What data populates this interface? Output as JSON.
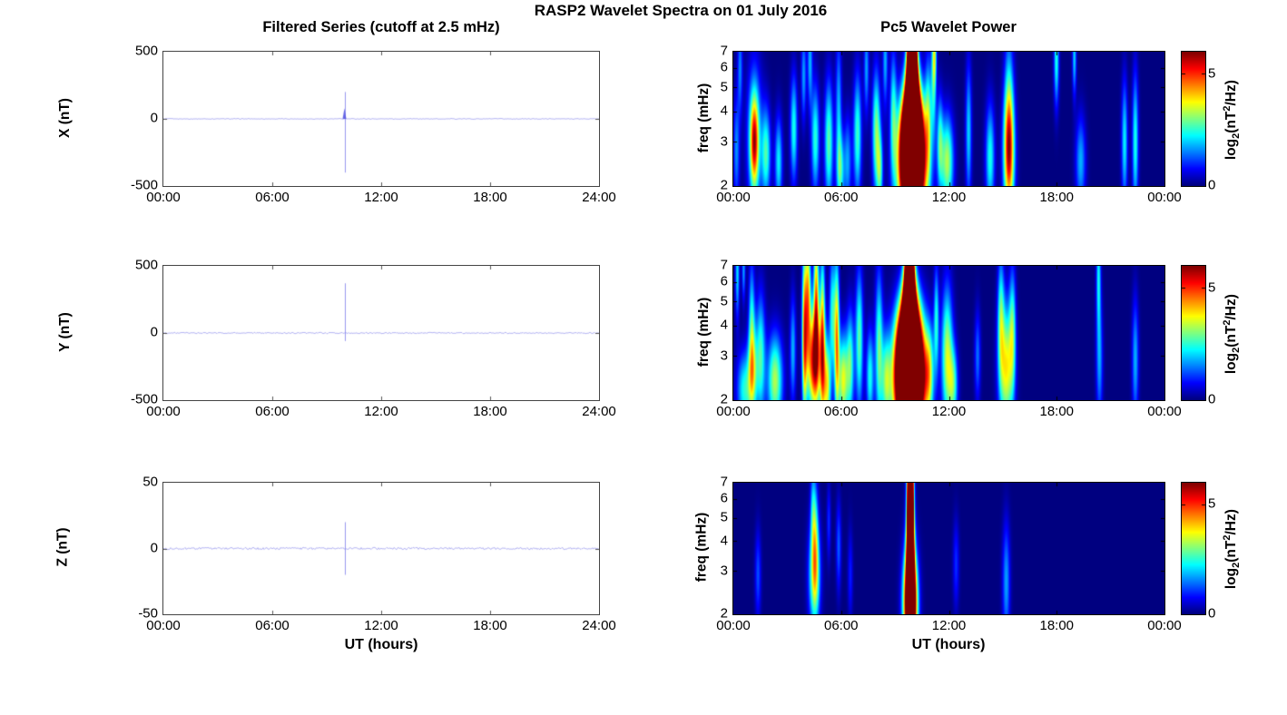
{
  "figure": {
    "title": "RASP2 Wavelet Spectra on 01 July 2016"
  },
  "left_column": {
    "title": "Filtered Series (cutoff at 2.5 mHz)",
    "xlabel": "UT (hours)"
  },
  "right_column": {
    "title": "Pc5 Wavelet Power",
    "xlabel": "UT (hours)"
  },
  "colorbar": {
    "label_prefix": "log",
    "label_sub": "2",
    "label_mid": "(nT",
    "label_sup": "2",
    "label_suffix": "/Hz)",
    "max": 6,
    "ticks": [
      {
        "label": "0",
        "value": 0
      },
      {
        "label": "5",
        "value": 5
      }
    ]
  },
  "chart_data": [
    {
      "type": "line",
      "series": "X",
      "ylabel": "X (nT)",
      "ylim": [
        -500,
        500
      ],
      "yticks": [
        "500",
        "0",
        "-500"
      ],
      "xlim_hours": [
        0,
        24
      ],
      "xticks": [
        "00:00",
        "06:00",
        "12:00",
        "18:00",
        "24:00"
      ],
      "baseline": 0,
      "noise_amp": 3,
      "spike": {
        "t": 10.0,
        "peak": 200,
        "trough": -400,
        "minor_peak": 80
      },
      "line_color": "#b0b0f2",
      "spike_color": "#8d8dee",
      "accent_color": "#4d4de0"
    },
    {
      "type": "heatmap",
      "series": "X",
      "ylabel": "freq (mHz)",
      "freq_range_mhz": [
        2,
        7
      ],
      "freq_ticks": [
        7,
        6,
        5,
        4,
        3,
        2
      ],
      "xlim_hours": [
        0,
        24
      ],
      "xticks": [
        "00:00",
        "06:00",
        "12:00",
        "18:00",
        "00:00"
      ],
      "power_units": "log2(nT^2/Hz)",
      "power_scale_max": 6,
      "blobs": [
        [
          9.95,
          2.4,
          0.5,
          0.4,
          12
        ],
        [
          9.95,
          3.2,
          0.33,
          0.3,
          12
        ],
        [
          9.95,
          4.5,
          0.2,
          0.3,
          12
        ],
        [
          9.95,
          6.0,
          0.15,
          0.35,
          12
        ],
        [
          9.95,
          7.0,
          0.13,
          0.3,
          12
        ],
        [
          0.15,
          2.8,
          0.12,
          0.35,
          1.6
        ],
        [
          0.35,
          6.0,
          0.1,
          0.3,
          1.5
        ],
        [
          1.15,
          3.0,
          0.17,
          0.3,
          4.2
        ],
        [
          1.15,
          3.2,
          0.3,
          0.5,
          1.8
        ],
        [
          1.8,
          2.7,
          0.18,
          0.3,
          2.6
        ],
        [
          2.5,
          2.5,
          0.15,
          0.3,
          2.2
        ],
        [
          3.35,
          3.4,
          0.14,
          0.35,
          2.4
        ],
        [
          3.9,
          5.6,
          0.1,
          0.3,
          1.7
        ],
        [
          4.25,
          6.4,
          0.1,
          0.3,
          1.8
        ],
        [
          4.55,
          3.1,
          0.16,
          0.35,
          2.5
        ],
        [
          5.3,
          3.0,
          0.17,
          0.4,
          2.8
        ],
        [
          5.85,
          4.0,
          0.12,
          0.5,
          1.8
        ],
        [
          5.95,
          2.3,
          0.15,
          0.25,
          2.3
        ],
        [
          6.35,
          2.5,
          0.15,
          0.3,
          1.7
        ],
        [
          6.9,
          3.2,
          0.16,
          0.4,
          2.6
        ],
        [
          7.4,
          6.0,
          0.1,
          0.3,
          1.7
        ],
        [
          7.95,
          3.3,
          0.16,
          0.4,
          3.0
        ],
        [
          8.15,
          2.3,
          0.12,
          0.25,
          2.3
        ],
        [
          8.45,
          6.5,
          0.1,
          0.3,
          1.8
        ],
        [
          8.9,
          4.0,
          0.13,
          0.4,
          2.2
        ],
        [
          10.85,
          3.8,
          0.13,
          0.4,
          2.3
        ],
        [
          11.15,
          5.5,
          0.1,
          0.4,
          2.3
        ],
        [
          11.2,
          6.9,
          0.08,
          0.2,
          2.0
        ],
        [
          11.5,
          3.0,
          0.12,
          0.3,
          2.2
        ],
        [
          11.9,
          2.5,
          0.25,
          0.3,
          3.3
        ],
        [
          13.1,
          3.3,
          0.12,
          0.45,
          2.0
        ],
        [
          14.3,
          2.6,
          0.18,
          0.35,
          2.4
        ],
        [
          15.35,
          2.7,
          0.22,
          0.4,
          4.4
        ],
        [
          15.35,
          3.9,
          0.18,
          0.55,
          2.0
        ],
        [
          18.0,
          6.5,
          0.1,
          0.3,
          2.4
        ],
        [
          19.0,
          6.7,
          0.08,
          0.25,
          2.0
        ],
        [
          19.35,
          2.5,
          0.2,
          0.3,
          1.8
        ],
        [
          21.8,
          3.0,
          0.12,
          0.4,
          2.2
        ],
        [
          22.4,
          3.0,
          0.12,
          0.45,
          2.4
        ]
      ]
    },
    {
      "type": "line",
      "series": "Y",
      "ylabel": "Y (nT)",
      "ylim": [
        -500,
        500
      ],
      "yticks": [
        "500",
        "0",
        "-500"
      ],
      "xlim_hours": [
        0,
        24
      ],
      "xticks": [
        "00:00",
        "06:00",
        "12:00",
        "18:00",
        "24:00"
      ],
      "baseline": 0,
      "noise_amp": 5,
      "spike": {
        "t": 10.0,
        "peak": 370,
        "trough": -60,
        "minor_peak": 0
      },
      "line_color": "#b0b0f2",
      "spike_color": "#8d8dee",
      "accent_color": "#4d4de0"
    },
    {
      "type": "heatmap",
      "series": "Y",
      "ylabel": "freq (mHz)",
      "freq_range_mhz": [
        2,
        7
      ],
      "freq_ticks": [
        7,
        6,
        5,
        4,
        3,
        2
      ],
      "xlim_hours": [
        0,
        24
      ],
      "xticks": [
        "00:00",
        "06:00",
        "12:00",
        "18:00",
        "00:00"
      ],
      "power_units": "log2(nT^2/Hz)",
      "power_scale_max": 6,
      "blobs": [
        [
          9.8,
          2.3,
          0.55,
          0.4,
          12
        ],
        [
          9.8,
          3.0,
          0.42,
          0.35,
          12
        ],
        [
          9.8,
          4.2,
          0.22,
          0.35,
          12
        ],
        [
          9.8,
          5.8,
          0.14,
          0.35,
          12
        ],
        [
          9.8,
          7.0,
          0.12,
          0.3,
          12
        ],
        [
          0.2,
          6.6,
          0.08,
          0.3,
          2.1
        ],
        [
          0.55,
          6.8,
          0.07,
          0.2,
          1.7
        ],
        [
          0.6,
          2.2,
          0.3,
          0.25,
          2.4
        ],
        [
          1.0,
          4.2,
          0.12,
          0.4,
          2.1
        ],
        [
          1.05,
          2.6,
          0.18,
          0.3,
          3.0
        ],
        [
          1.5,
          3.0,
          0.18,
          0.4,
          2.6
        ],
        [
          2.3,
          2.4,
          0.3,
          0.3,
          3.3
        ],
        [
          3.3,
          3.2,
          0.12,
          0.35,
          1.8
        ],
        [
          3.95,
          3.8,
          0.1,
          0.55,
          4.6
        ],
        [
          4.15,
          5.5,
          0.1,
          0.4,
          3.6
        ],
        [
          4.5,
          2.9,
          0.28,
          0.35,
          5.8
        ],
        [
          4.6,
          5.5,
          0.1,
          0.45,
          3.8
        ],
        [
          4.95,
          3.5,
          0.1,
          0.55,
          4.0
        ],
        [
          5.2,
          2.3,
          0.15,
          0.3,
          3.6
        ],
        [
          5.5,
          4.5,
          0.12,
          0.4,
          2.4
        ],
        [
          5.75,
          3.5,
          0.1,
          0.5,
          4.2
        ],
        [
          6.1,
          2.4,
          0.2,
          0.3,
          3.6
        ],
        [
          6.5,
          2.8,
          0.15,
          0.35,
          2.6
        ],
        [
          7.0,
          3.5,
          0.15,
          0.45,
          2.8
        ],
        [
          7.6,
          2.5,
          0.15,
          0.3,
          2.4
        ],
        [
          8.1,
          3.2,
          0.15,
          0.5,
          2.8
        ],
        [
          8.5,
          2.4,
          0.18,
          0.3,
          2.6
        ],
        [
          10.9,
          2.6,
          0.18,
          0.3,
          2.6
        ],
        [
          11.3,
          4.2,
          0.1,
          0.35,
          2.3
        ],
        [
          11.9,
          3.0,
          0.22,
          0.45,
          3.4
        ],
        [
          12.25,
          2.3,
          0.18,
          0.25,
          2.4
        ],
        [
          13.6,
          3.0,
          0.12,
          0.3,
          1.4
        ],
        [
          14.9,
          4.4,
          0.13,
          0.4,
          2.4
        ],
        [
          15.2,
          2.7,
          0.28,
          0.4,
          3.8
        ],
        [
          15.55,
          3.9,
          0.13,
          0.4,
          2.3
        ],
        [
          20.35,
          6.4,
          0.09,
          0.35,
          2.1
        ],
        [
          20.4,
          2.9,
          0.13,
          0.4,
          1.7
        ],
        [
          22.4,
          2.9,
          0.13,
          0.4,
          1.8
        ]
      ]
    },
    {
      "type": "line",
      "series": "Z",
      "ylabel": "Z (nT)",
      "ylim": [
        -50,
        50
      ],
      "yticks": [
        "50",
        "0",
        "-50"
      ],
      "xlim_hours": [
        0,
        24
      ],
      "xticks": [
        "00:00",
        "06:00",
        "12:00",
        "18:00",
        "24:00"
      ],
      "baseline": 0,
      "noise_amp": 0.8,
      "spike": {
        "t": 10.0,
        "peak": 20,
        "trough": -20,
        "minor_peak": 0
      },
      "line_color": "#b0b0f2",
      "spike_color": "#8d8dee",
      "accent_color": "#4d4de0"
    },
    {
      "type": "heatmap",
      "series": "Z",
      "ylabel": "freq (mHz)",
      "freq_range_mhz": [
        2,
        7
      ],
      "freq_ticks": [
        7,
        6,
        5,
        4,
        3,
        2
      ],
      "xlim_hours": [
        0,
        24
      ],
      "xticks": [
        "00:00",
        "06:00",
        "12:00",
        "18:00",
        "00:00"
      ],
      "power_units": "log2(nT^2/Hz)",
      "power_scale_max": 6,
      "blobs": [
        [
          9.85,
          2.2,
          0.25,
          0.35,
          10
        ],
        [
          9.85,
          3.5,
          0.13,
          0.5,
          10
        ],
        [
          9.85,
          5.5,
          0.1,
          0.5,
          10
        ],
        [
          9.85,
          7.0,
          0.09,
          0.3,
          10
        ],
        [
          4.5,
          2.9,
          0.22,
          0.35,
          3.4
        ],
        [
          4.55,
          4.2,
          0.12,
          0.4,
          1.9
        ],
        [
          4.4,
          5.5,
          0.1,
          0.3,
          1.4
        ],
        [
          1.35,
          2.9,
          0.12,
          0.3,
          1.2
        ],
        [
          5.85,
          3.8,
          0.1,
          0.3,
          1.3
        ],
        [
          5.3,
          4.8,
          0.08,
          0.25,
          1.0
        ],
        [
          6.5,
          2.9,
          0.1,
          0.3,
          0.9
        ],
        [
          12.4,
          3.2,
          0.12,
          0.3,
          1.0
        ],
        [
          15.2,
          2.7,
          0.15,
          0.4,
          1.7
        ]
      ]
    }
  ]
}
